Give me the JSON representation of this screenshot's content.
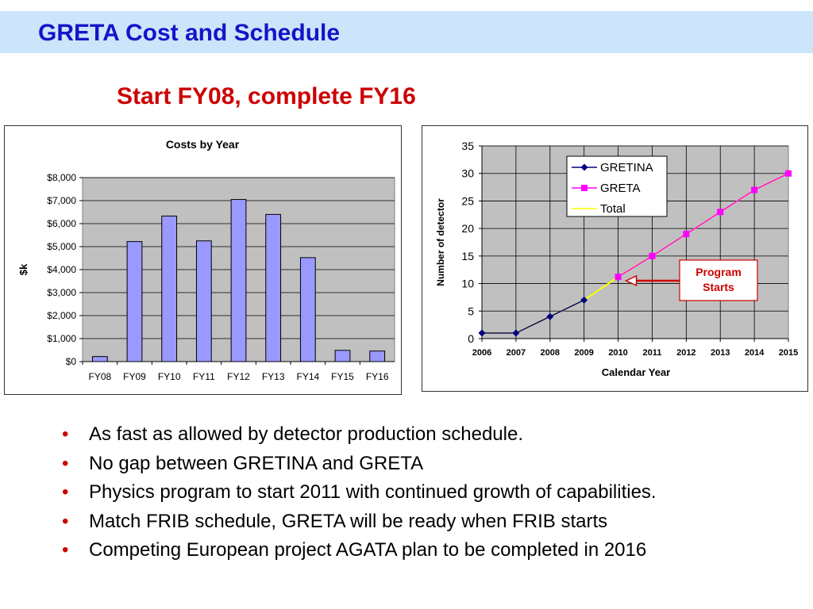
{
  "slide": {
    "title": "GRETA Cost and Schedule",
    "subtitle": "Start FY08, complete FY16",
    "bullets": [
      "As fast as allowed by detector production schedule.",
      "No gap between GRETINA and GRETA",
      "Physics program to start 2011 with continued growth of capabilities.",
      "Match FRIB schedule, GRETA will be ready when FRIB starts",
      "Competing European project AGATA plan to be completed in 2016"
    ],
    "bullet_symbol": "•",
    "colors": {
      "title": "#1414c8",
      "subtitle": "#cc0000",
      "header_band": "#cde5fb",
      "bullet": "#cc0000"
    }
  },
  "chart_data": [
    {
      "type": "bar",
      "title": "Costs by Year",
      "xlabel": "",
      "ylabel": "$k",
      "categories": [
        "FY08",
        "FY09",
        "FY10",
        "FY11",
        "FY12",
        "FY13",
        "FY14",
        "FY15",
        "FY16"
      ],
      "values": [
        220,
        5220,
        6330,
        5250,
        7050,
        6400,
        4520,
        490,
        460
      ],
      "ylim": [
        0,
        8000
      ],
      "yticks": [
        "$0",
        "$1,000",
        "$2,000",
        "$3,000",
        "$4,000",
        "$5,000",
        "$6,000",
        "$7,000",
        "$8,000"
      ],
      "bar_color": "#9999ff",
      "plot_background": "#c0c0c0",
      "grid": true
    },
    {
      "type": "line",
      "title": "",
      "xlabel": "Calendar Year",
      "ylabel": "Number of detector",
      "x": [
        2006,
        2007,
        2008,
        2009,
        2010,
        2011,
        2012,
        2013,
        2014,
        2015
      ],
      "ylim": [
        0,
        35
      ],
      "yticks": [
        "0",
        "5",
        "10",
        "15",
        "20",
        "25",
        "30",
        "35"
      ],
      "series": [
        {
          "name": "GRETINA",
          "x": [
            2006,
            2007,
            2008,
            2009
          ],
          "values": [
            1,
            1,
            4,
            7
          ],
          "color": "#000080",
          "marker": "diamond"
        },
        {
          "name": "GRETA",
          "x": [
            2010,
            2011,
            2012,
            2013,
            2014,
            2015
          ],
          "values": [
            11.2,
            15,
            19,
            23,
            27,
            30
          ],
          "color": "#ff00ff",
          "marker": "square"
        },
        {
          "name": "Total",
          "x": [
            2006,
            2007,
            2008,
            2009,
            2010,
            2011,
            2012,
            2013,
            2014,
            2015
          ],
          "values": [
            1,
            1,
            4,
            7,
            11.2,
            15,
            19,
            23,
            27,
            30
          ],
          "color": "#ffff00",
          "marker": "none"
        }
      ],
      "annotation": {
        "text_lines": [
          "Program",
          "Starts"
        ],
        "points_to_x": 2010,
        "color": "#cc0000"
      },
      "plot_background": "#c0c0c0",
      "legend_position": "top-center",
      "grid": true
    }
  ]
}
